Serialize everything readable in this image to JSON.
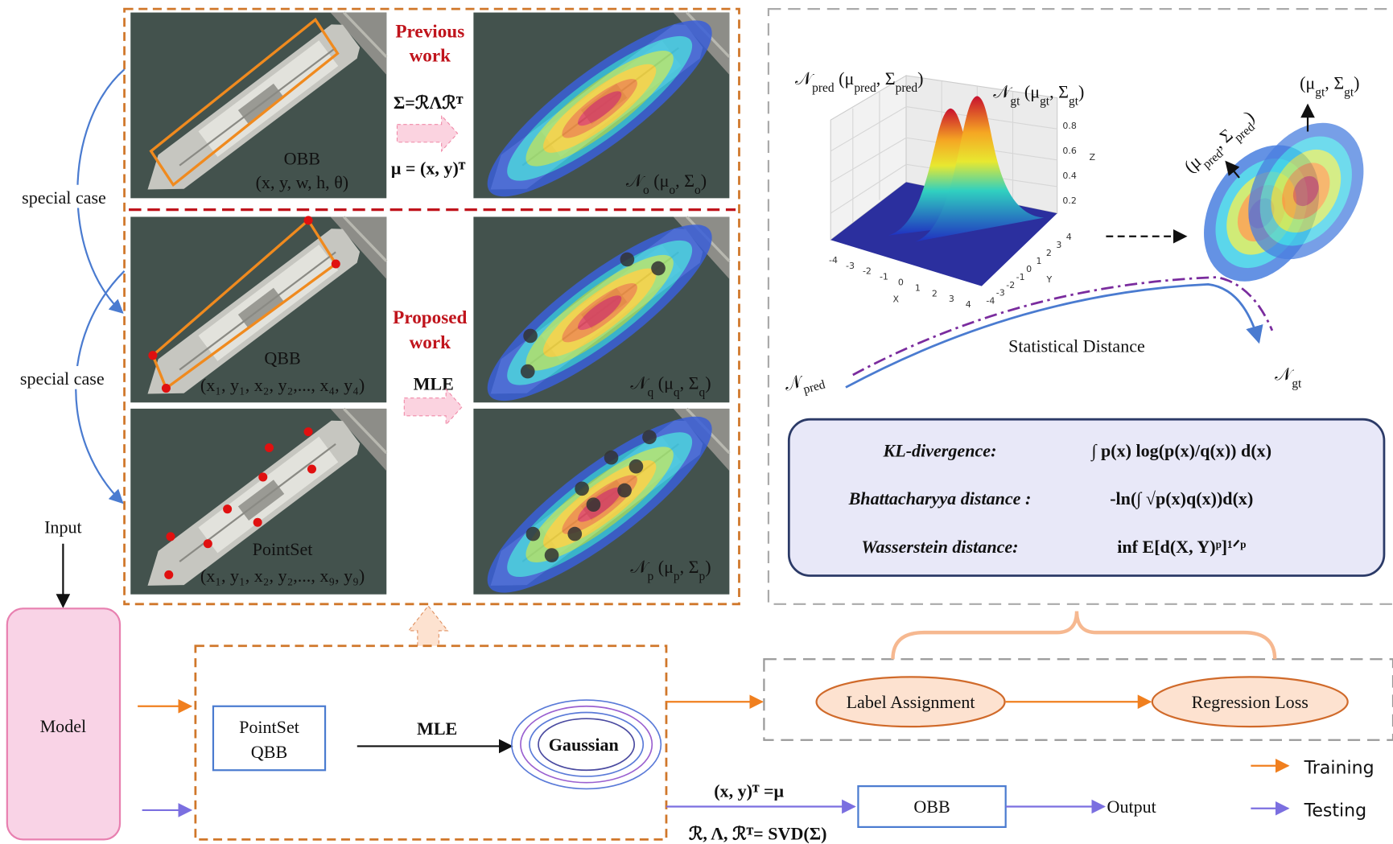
{
  "left_panel": {
    "special_case_top": "special case",
    "special_case_bottom": "special case",
    "input": "Input",
    "model": "Model",
    "previous_work": [
      "Previous",
      "work"
    ],
    "sigma_formula": "Σ=ℛΛℛᵀ",
    "mu_formula": "μ = (x, y)ᵀ",
    "proposed_work": [
      "Proposed",
      "work"
    ],
    "mle": "MLE",
    "obb": {
      "name": "OBB",
      "params": "(x, y, w, h, θ)",
      "gaussian": [
        "𝒩",
        "o",
        " (μ",
        "o",
        ", Σ",
        "o",
        ")"
      ]
    },
    "qbb": {
      "name": "QBB",
      "params": "(x₁, y₁, x₂, y₂,..., x₄, y₄)",
      "gaussian": [
        "𝒩",
        "q",
        " (μ",
        "q",
        ", Σ",
        "q",
        ")"
      ]
    },
    "pointset": {
      "name": "PointSet",
      "params": "(x₁, y₁, x₂, y₂,..., x₉, y₉)",
      "gaussian": [
        "𝒩",
        "p",
        " (μ",
        "p",
        ", Σ",
        "p",
        ")"
      ]
    }
  },
  "pipeline": {
    "input_box": [
      "PointSet",
      "QBB"
    ],
    "mle": "MLE",
    "gaussian": "Gaussian",
    "mu_eq": "(x, y)ᵀ =μ",
    "svd_eq": "ℛ, Λ, ℛᵀ= SVD(Σ)",
    "obb": "OBB",
    "output": "Output",
    "label_assignment": "Label Assignment",
    "regression_loss": "Regression Loss"
  },
  "legend": {
    "training": "Training",
    "testing": "Testing"
  },
  "right_panel": {
    "pred_dist": [
      "𝒩",
      "pred",
      " (μ",
      "pred",
      ", Σ",
      "pred",
      ")"
    ],
    "gt_dist": [
      "𝒩",
      "gt",
      " (μ",
      "gt",
      ", Σ",
      "gt",
      ")"
    ],
    "gt_params": [
      "(μ",
      "gt",
      ", Σ",
      "gt",
      ")"
    ],
    "pred_params": [
      "(μ",
      "pred",
      ", Σ",
      "pred",
      ")"
    ],
    "statistical_distance": "Statistical Distance",
    "n_pred": [
      "𝒩",
      "pred"
    ],
    "n_gt": [
      "𝒩",
      "gt"
    ],
    "plot": {
      "x_label": "X",
      "y_label": "Y",
      "z_label": "Z",
      "x_ticks": [
        -4,
        -3,
        -2,
        -1,
        0,
        1,
        2,
        3,
        4
      ],
      "y_ticks": [
        -4,
        -3,
        -2,
        -1,
        0,
        1,
        2,
        3,
        4
      ],
      "z_ticks": [
        0.2,
        0.4,
        0.6,
        0.8
      ]
    },
    "metrics": [
      {
        "name": "KL-divergence:",
        "formula": "∫ p(x) log(p(x)/q(x)) d(x)"
      },
      {
        "name": "Bhattacharyya distance :",
        "formula": "-ln(∫ √p(x)q(x))d(x)"
      },
      {
        "name": "Wasserstein distance:",
        "formula": "inf E[d(X, Y)ᵖ]¹ᐟᵖ"
      }
    ]
  }
}
